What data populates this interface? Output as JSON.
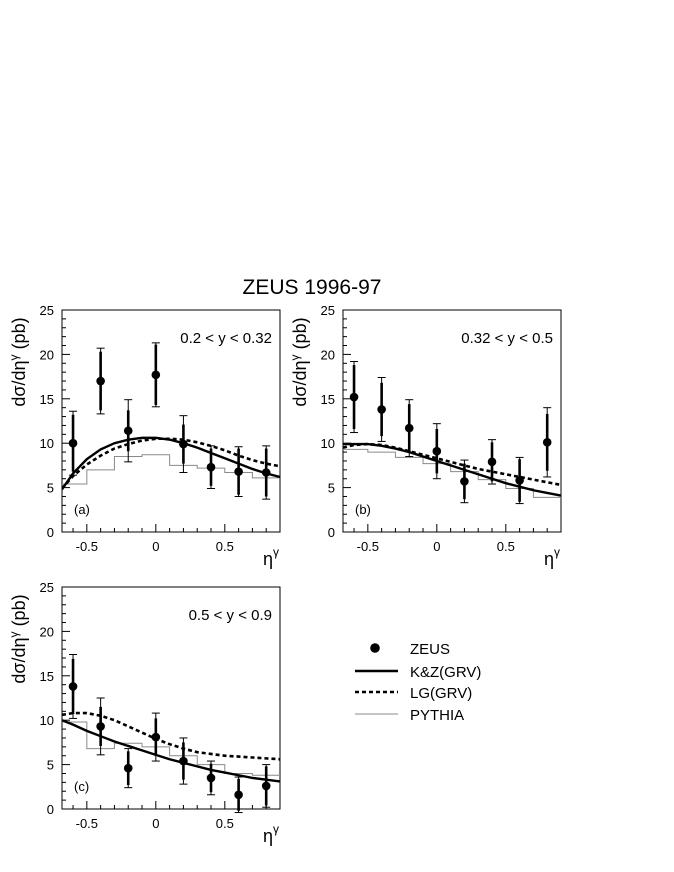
{
  "figure_title": "ZEUS 1996-97",
  "ylabel": "dσ/dη",
  "ylabel_sup": "γ",
  "ylabel_unit": "(pb)",
  "xlabel": "η",
  "xlabel_sup": "γ",
  "legend": {
    "entries": [
      {
        "label": "ZEUS",
        "style": "marker"
      },
      {
        "label": "K&Z(GRV)",
        "style": "solid"
      },
      {
        "label": "LG(GRV)",
        "style": "dashed"
      },
      {
        "label": "PYTHIA",
        "style": "thin"
      }
    ]
  },
  "chart_data": [
    {
      "type": "scatter",
      "panel_label": "(a)",
      "range_label": "0.2 < y < 0.32",
      "xlim": [
        -0.68,
        0.9
      ],
      "ylim": [
        0,
        25
      ],
      "xticks": [
        -0.5,
        0,
        0.5
      ],
      "xtick_labels": [
        "-0.5",
        "0",
        "0.5"
      ],
      "yticks": [
        0,
        5,
        10,
        15,
        20,
        25
      ],
      "ytick_labels": [
        "0",
        "5",
        "10",
        "15",
        "20",
        "25"
      ],
      "zeus": {
        "x": [
          -0.6,
          -0.4,
          -0.2,
          0.0,
          0.2,
          0.4,
          0.6,
          0.8
        ],
        "y": [
          10.0,
          17.0,
          11.4,
          17.7,
          9.9,
          7.3,
          6.8,
          6.7
        ],
        "stat_err": [
          3.2,
          3.3,
          2.3,
          3.4,
          2.2,
          2.1,
          2.6,
          2.7
        ],
        "tot_err": [
          3.6,
          3.7,
          3.5,
          3.6,
          3.2,
          2.4,
          2.8,
          3.0
        ]
      },
      "kz": {
        "x": [
          -0.68,
          -0.6,
          -0.5,
          -0.4,
          -0.3,
          -0.2,
          -0.1,
          0.0,
          0.1,
          0.2,
          0.3,
          0.4,
          0.5,
          0.6,
          0.7,
          0.8,
          0.9
        ],
        "y": [
          4.8,
          6.6,
          8.2,
          9.3,
          10.0,
          10.4,
          10.6,
          10.6,
          10.4,
          10.0,
          9.5,
          8.9,
          8.3,
          7.7,
          7.1,
          6.6,
          6.2
        ]
      },
      "lg": {
        "x": [
          -0.68,
          -0.6,
          -0.5,
          -0.4,
          -0.3,
          -0.2,
          -0.1,
          0.0,
          0.1,
          0.2,
          0.3,
          0.4,
          0.5,
          0.6,
          0.7,
          0.8,
          0.9
        ],
        "y": [
          4.9,
          6.3,
          7.6,
          8.6,
          9.4,
          9.9,
          10.3,
          10.5,
          10.5,
          10.4,
          10.1,
          9.7,
          9.2,
          8.6,
          8.1,
          7.7,
          7.4
        ]
      },
      "pythia": {
        "edges": [
          -0.7,
          -0.5,
          -0.3,
          -0.1,
          0.1,
          0.3,
          0.5,
          0.7,
          0.9
        ],
        "values": [
          5.4,
          7.0,
          8.5,
          8.7,
          7.5,
          7.2,
          6.7,
          6.1
        ]
      }
    },
    {
      "type": "scatter",
      "panel_label": "(b)",
      "range_label": "0.32 < y < 0.5",
      "xlim": [
        -0.68,
        0.9
      ],
      "ylim": [
        0,
        25
      ],
      "xticks": [
        -0.5,
        0,
        0.5
      ],
      "xtick_labels": [
        "-0.5",
        "0",
        "0.5"
      ],
      "yticks": [
        0,
        5,
        10,
        15,
        20,
        25
      ],
      "ytick_labels": [
        "0",
        "5",
        "10",
        "15",
        "20",
        "25"
      ],
      "zeus": {
        "x": [
          -0.6,
          -0.4,
          -0.2,
          0.0,
          0.2,
          0.4,
          0.6,
          0.8
        ],
        "y": [
          15.2,
          13.8,
          11.7,
          9.1,
          5.7,
          7.9,
          5.8,
          10.1
        ],
        "stat_err": [
          3.6,
          3.0,
          2.7,
          2.5,
          2.0,
          2.2,
          2.4,
          3.2
        ],
        "tot_err": [
          4.0,
          3.6,
          3.2,
          3.1,
          2.4,
          2.5,
          2.6,
          3.9
        ]
      },
      "kz": {
        "x": [
          -0.68,
          -0.6,
          -0.5,
          -0.4,
          -0.3,
          -0.2,
          -0.1,
          0.0,
          0.1,
          0.2,
          0.3,
          0.4,
          0.5,
          0.6,
          0.7,
          0.8,
          0.9
        ],
        "y": [
          9.9,
          9.9,
          9.9,
          9.7,
          9.4,
          9.0,
          8.5,
          8.0,
          7.5,
          7.0,
          6.5,
          6.0,
          5.5,
          5.1,
          4.7,
          4.4,
          4.1
        ]
      },
      "lg": {
        "x": [
          -0.68,
          -0.6,
          -0.5,
          -0.4,
          -0.3,
          -0.2,
          -0.1,
          0.0,
          0.1,
          0.2,
          0.3,
          0.4,
          0.5,
          0.6,
          0.7,
          0.8,
          0.9
        ],
        "y": [
          9.5,
          9.8,
          9.9,
          9.8,
          9.5,
          9.1,
          8.7,
          8.3,
          7.9,
          7.5,
          7.1,
          6.8,
          6.5,
          6.2,
          5.9,
          5.6,
          5.3
        ]
      },
      "pythia": {
        "edges": [
          -0.7,
          -0.5,
          -0.3,
          -0.1,
          0.1,
          0.3,
          0.5,
          0.7,
          0.9
        ],
        "values": [
          9.3,
          9.0,
          8.4,
          7.7,
          6.8,
          5.9,
          4.9,
          3.9
        ]
      }
    },
    {
      "type": "scatter",
      "panel_label": "(c)",
      "range_label": "0.5 < y < 0.9",
      "xlim": [
        -0.68,
        0.9
      ],
      "ylim": [
        0,
        25
      ],
      "xticks": [
        -0.5,
        0,
        0.5
      ],
      "xtick_labels": [
        "-0.5",
        "0",
        "0.5"
      ],
      "yticks": [
        0,
        5,
        10,
        15,
        20,
        25
      ],
      "ytick_labels": [
        "0",
        "5",
        "10",
        "15",
        "20",
        "25"
      ],
      "zeus": {
        "x": [
          -0.6,
          -0.4,
          -0.2,
          0.0,
          0.2,
          0.4,
          0.6,
          0.8
        ],
        "y": [
          13.8,
          9.3,
          4.6,
          8.1,
          5.4,
          3.5,
          1.6,
          2.6
        ],
        "stat_err": [
          3.1,
          2.2,
          1.9,
          2.1,
          2.1,
          1.6,
          1.8,
          2.2
        ],
        "tot_err": [
          3.6,
          3.2,
          2.2,
          2.7,
          2.6,
          1.9,
          2.0,
          2.4
        ]
      },
      "kz": {
        "x": [
          -0.68,
          -0.6,
          -0.5,
          -0.4,
          -0.3,
          -0.2,
          -0.1,
          0.0,
          0.1,
          0.2,
          0.3,
          0.4,
          0.5,
          0.6,
          0.7,
          0.8,
          0.9
        ],
        "y": [
          10.0,
          9.5,
          8.8,
          8.2,
          7.6,
          7.1,
          6.6,
          6.1,
          5.6,
          5.2,
          4.8,
          4.4,
          4.1,
          3.8,
          3.5,
          3.3,
          3.1
        ]
      },
      "lg": {
        "x": [
          -0.68,
          -0.6,
          -0.5,
          -0.4,
          -0.3,
          -0.2,
          -0.1,
          0.0,
          0.1,
          0.2,
          0.3,
          0.4,
          0.5,
          0.6,
          0.7,
          0.8,
          0.9
        ],
        "y": [
          10.6,
          10.8,
          10.8,
          10.5,
          10.0,
          9.3,
          8.6,
          7.9,
          7.3,
          6.8,
          6.4,
          6.2,
          6.0,
          5.9,
          5.8,
          5.7,
          5.6
        ]
      },
      "pythia": {
        "edges": [
          -0.7,
          -0.5,
          -0.3,
          -0.1,
          0.1,
          0.3,
          0.5,
          0.7,
          0.9
        ],
        "values": [
          9.8,
          6.8,
          7.4,
          7.0,
          6.0,
          5.0,
          4.0,
          3.8
        ]
      }
    }
  ]
}
